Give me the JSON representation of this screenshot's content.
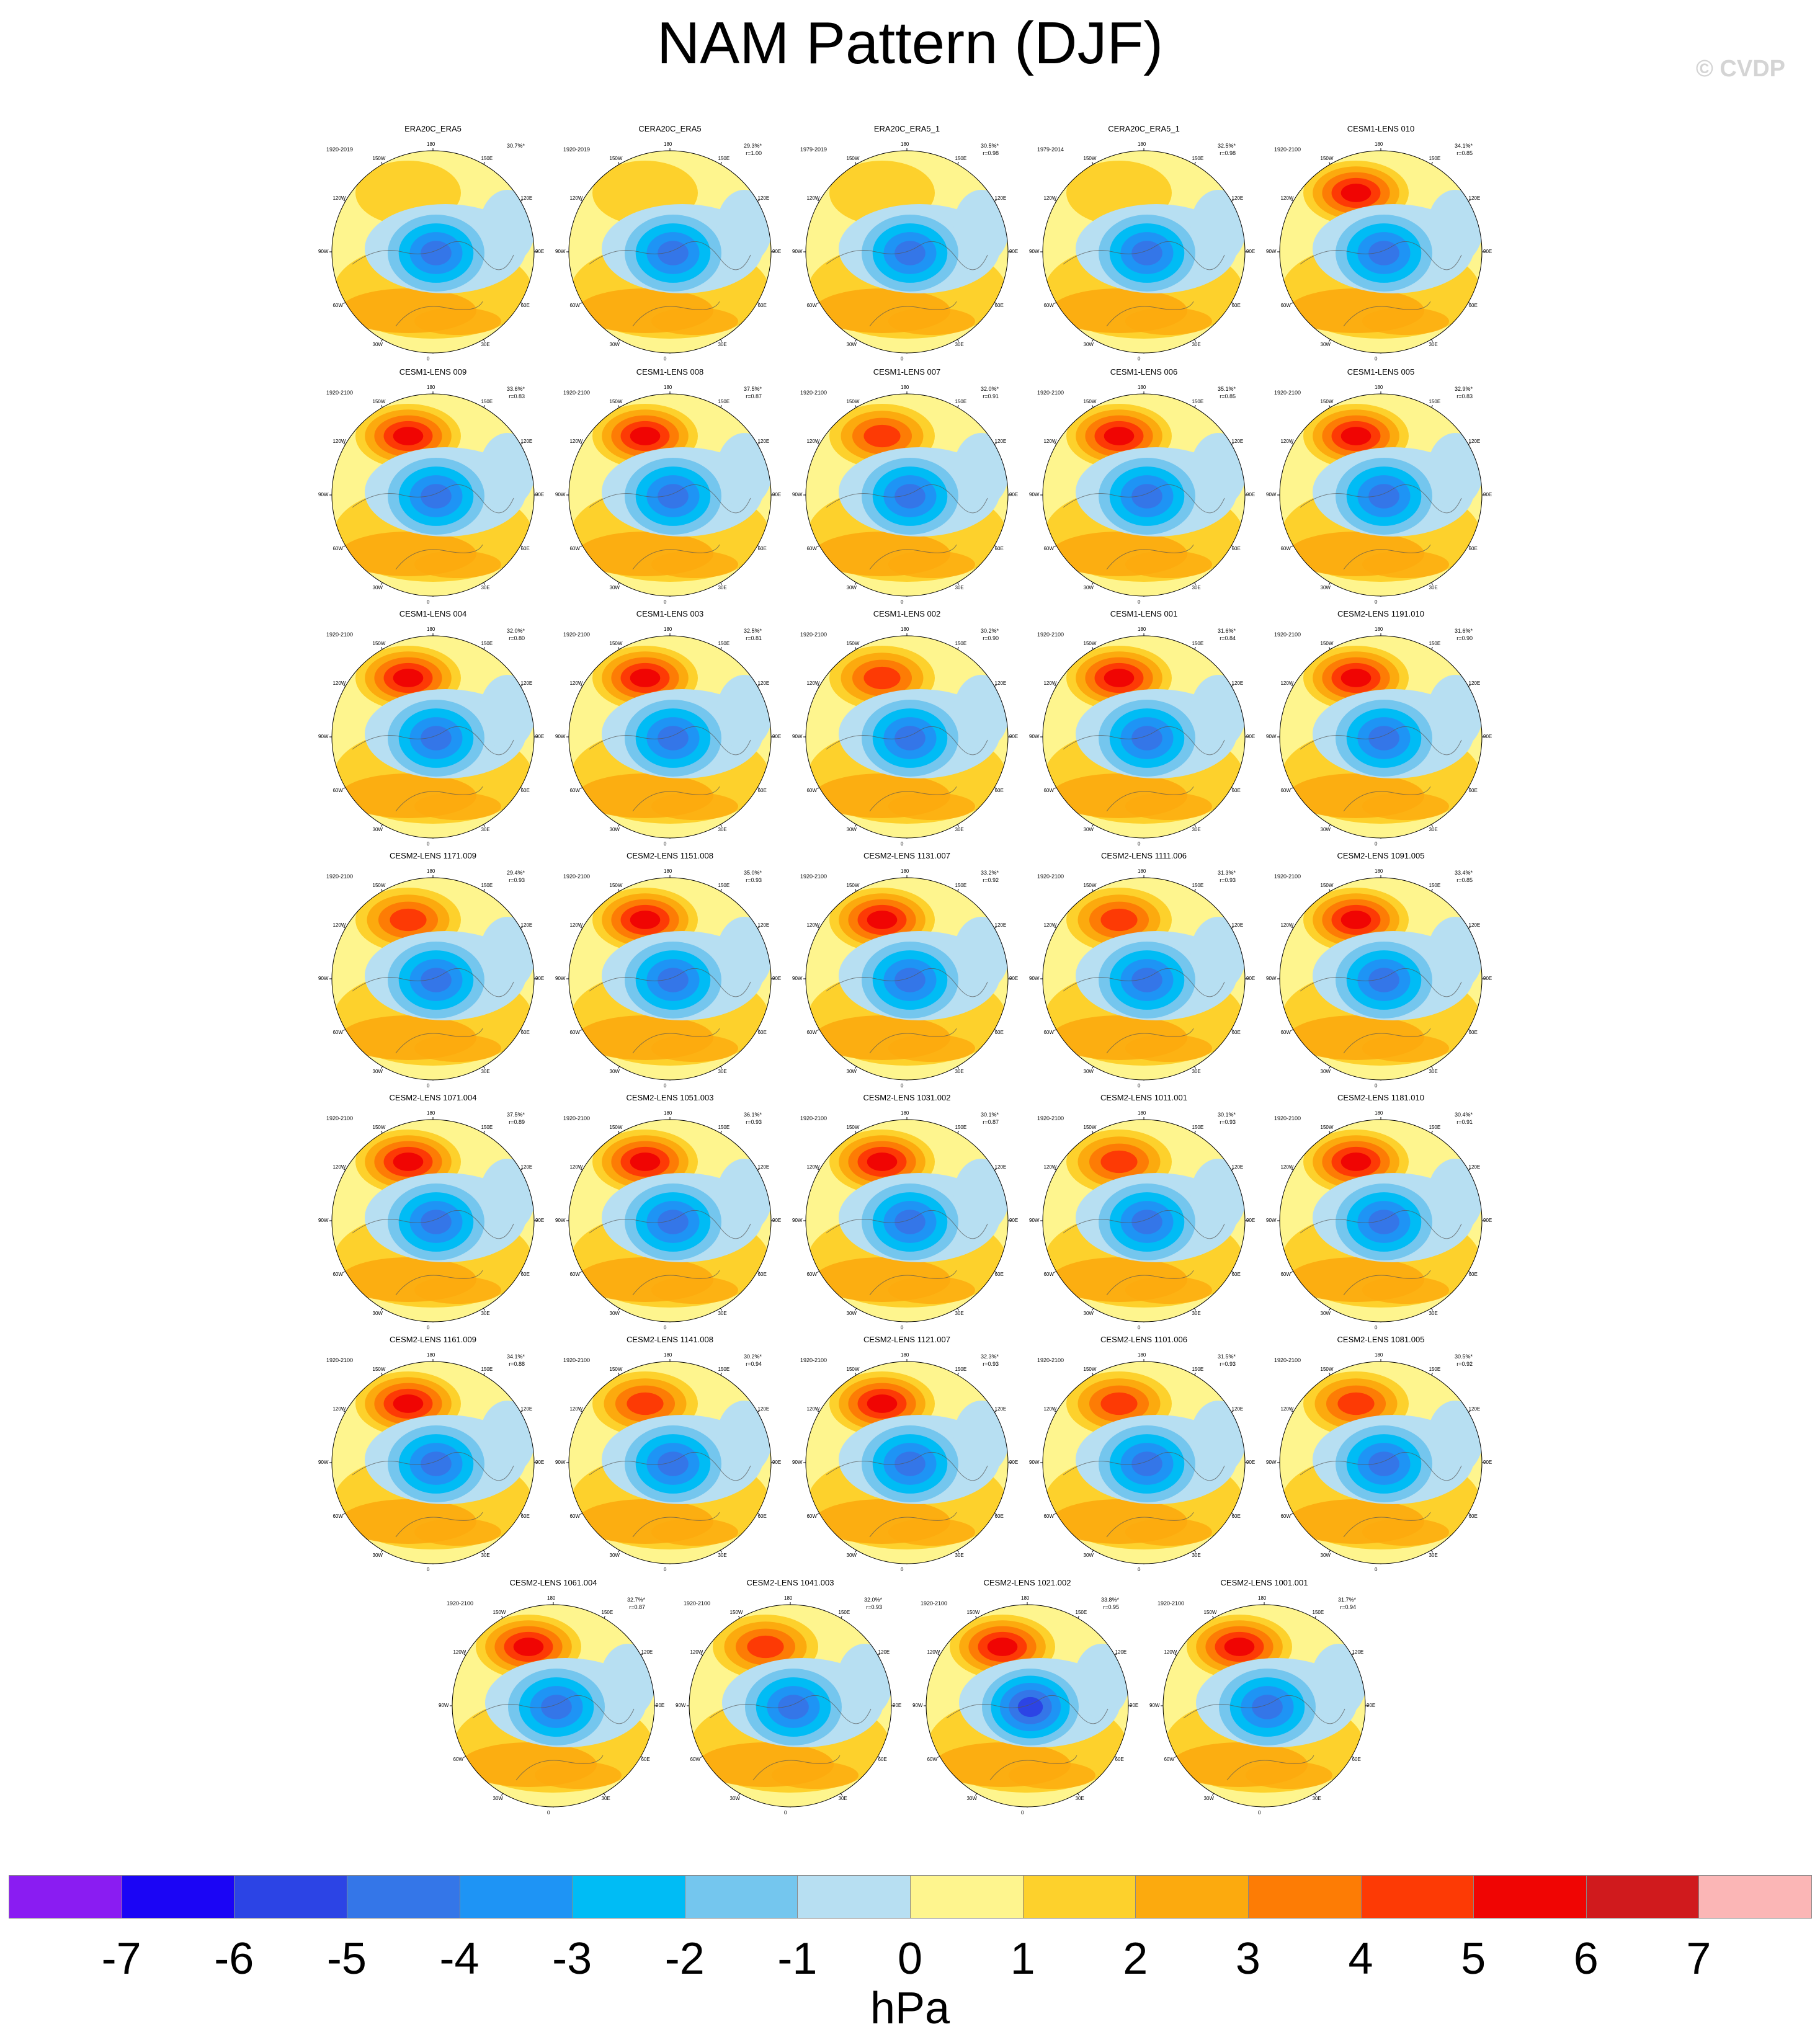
{
  "title": "NAM Pattern (DJF)",
  "copyright": "© CVDP",
  "units": "hPa",
  "longitude_labels": [
    "180",
    "150E",
    "120E",
    "90E",
    "60E",
    "30E",
    "0",
    "30W",
    "60W",
    "90W",
    "120W",
    "150W"
  ],
  "colorbar": {
    "ticks": [
      "-7",
      "-6",
      "-5",
      "-4",
      "-3",
      "-2",
      "-1",
      "0",
      "1",
      "2",
      "3",
      "4",
      "5",
      "6",
      "7"
    ],
    "colors": [
      "#8a1cf2",
      "#1b05f5",
      "#2c44e5",
      "#3476e8",
      "#1e94f5",
      "#00bcf5",
      "#74c6ee",
      "#b7dff2",
      "#fef58e",
      "#fdd12c",
      "#fcaa0e",
      "#fd7c05",
      "#fd3a05",
      "#f00503",
      "#d01a1d",
      "#fbb6b6"
    ]
  },
  "panels": [
    {
      "name": "ERA20C_ERA5",
      "period": "1920-2019",
      "variance": "30.7%*",
      "corr": "",
      "pos": 1.0,
      "neg": 4.2
    },
    {
      "name": "CERA20C_ERA5",
      "period": "1920-2019",
      "variance": "29.3%*",
      "corr": "r=1.00",
      "pos": 1.0,
      "neg": 4.3
    },
    {
      "name": "ERA20C_ERA5_1",
      "period": "1979-2019",
      "variance": "30.5%*",
      "corr": "r=0.98",
      "pos": 1.0,
      "neg": 4.3
    },
    {
      "name": "CERA20C_ERA5_1",
      "period": "1979-2014",
      "variance": "32.5%*",
      "corr": "r=0.98",
      "pos": 1.0,
      "neg": 4.4
    },
    {
      "name": "CESM1-LENS 010",
      "period": "1920-2100",
      "variance": "34.1%*",
      "corr": "r=0.85",
      "pos": 5.2,
      "neg": 4.2
    },
    {
      "name": "CESM1-LENS 009",
      "period": "1920-2100",
      "variance": "33.6%*",
      "corr": "r=0.83",
      "pos": 5.5,
      "neg": 4.3
    },
    {
      "name": "CESM1-LENS 008",
      "period": "1920-2100",
      "variance": "37.5%*",
      "corr": "r=0.87",
      "pos": 5.5,
      "neg": 4.4
    },
    {
      "name": "CESM1-LENS 007",
      "period": "1920-2100",
      "variance": "32.0%*",
      "corr": "r=0.91",
      "pos": 4.5,
      "neg": 4.3
    },
    {
      "name": "CESM1-LENS 006",
      "period": "1920-2100",
      "variance": "35.1%*",
      "corr": "r=0.85",
      "pos": 5.5,
      "neg": 4.4
    },
    {
      "name": "CESM1-LENS 005",
      "period": "1920-2100",
      "variance": "32.9%*",
      "corr": "r=0.83",
      "pos": 5.3,
      "neg": 4.3
    },
    {
      "name": "CESM1-LENS 004",
      "period": "1920-2100",
      "variance": "32.0%*",
      "corr": "r=0.80",
      "pos": 5.5,
      "neg": 4.1
    },
    {
      "name": "CESM1-LENS 003",
      "period": "1920-2100",
      "variance": "32.5%*",
      "corr": "r=0.81",
      "pos": 5.3,
      "neg": 4.1
    },
    {
      "name": "CESM1-LENS 002",
      "period": "1920-2100",
      "variance": "30.2%*",
      "corr": "r=0.90",
      "pos": 4.2,
      "neg": 4.2
    },
    {
      "name": "CESM1-LENS 001",
      "period": "1920-2100",
      "variance": "31.6%*",
      "corr": "r=0.84",
      "pos": 5.0,
      "neg": 4.3
    },
    {
      "name": "CESM2-LENS 1191.010",
      "period": "1920-2100",
      "variance": "31.6%*",
      "corr": "r=0.90",
      "pos": 5.0,
      "neg": 4.3
    },
    {
      "name": "CESM2-LENS 1171.009",
      "period": "1920-2100",
      "variance": "29.4%*",
      "corr": "r=0.93",
      "pos": 4.4,
      "neg": 4.3
    },
    {
      "name": "CESM2-LENS 1151.008",
      "period": "1920-2100",
      "variance": "35.0%*",
      "corr": "r=0.93",
      "pos": 5.0,
      "neg": 4.4
    },
    {
      "name": "CESM2-LENS 1131.007",
      "period": "1920-2100",
      "variance": "33.2%*",
      "corr": "r=0.92",
      "pos": 5.2,
      "neg": 4.4
    },
    {
      "name": "CESM2-LENS 1111.006",
      "period": "1920-2100",
      "variance": "31.3%*",
      "corr": "r=0.93",
      "pos": 4.6,
      "neg": 4.3
    },
    {
      "name": "CESM2-LENS 1091.005",
      "period": "1920-2100",
      "variance": "33.4%*",
      "corr": "r=0.85",
      "pos": 5.2,
      "neg": 4.3
    },
    {
      "name": "CESM2-LENS 1071.004",
      "period": "1920-2100",
      "variance": "37.5%*",
      "corr": "r=0.89",
      "pos": 5.6,
      "neg": 4.5
    },
    {
      "name": "CESM2-LENS 1051.003",
      "period": "1920-2100",
      "variance": "36.1%*",
      "corr": "r=0.93",
      "pos": 5.0,
      "neg": 4.5
    },
    {
      "name": "CESM2-LENS 1031.002",
      "period": "1920-2100",
      "variance": "30.1%*",
      "corr": "r=0.87",
      "pos": 5.3,
      "neg": 4.3
    },
    {
      "name": "CESM2-LENS 1011.001",
      "period": "1920-2100",
      "variance": "30.1%*",
      "corr": "r=0.93",
      "pos": 4.5,
      "neg": 4.4
    },
    {
      "name": "CESM2-LENS 1181.010",
      "period": "1920-2100",
      "variance": "30.4%*",
      "corr": "r=0.91",
      "pos": 5.0,
      "neg": 4.3
    },
    {
      "name": "CESM2-LENS 1161.009",
      "period": "1920-2100",
      "variance": "34.1%*",
      "corr": "r=0.88",
      "pos": 5.6,
      "neg": 4.4
    },
    {
      "name": "CESM2-LENS 1141.008",
      "period": "1920-2100",
      "variance": "30.2%*",
      "corr": "r=0.94",
      "pos": 4.4,
      "neg": 4.3
    },
    {
      "name": "CESM2-LENS 1121.007",
      "period": "1920-2100",
      "variance": "32.3%*",
      "corr": "r=0.93",
      "pos": 5.0,
      "neg": 4.3
    },
    {
      "name": "CESM2-LENS 1101.006",
      "period": "1920-2100",
      "variance": "31.5%*",
      "corr": "r=0.93",
      "pos": 4.4,
      "neg": 4.3
    },
    {
      "name": "CESM2-LENS 1081.005",
      "period": "1920-2100",
      "variance": "30.5%*",
      "corr": "r=0.92",
      "pos": 4.4,
      "neg": 4.3
    },
    {
      "name": "CESM2-LENS 1061.004",
      "period": "1920-2100",
      "variance": "32.7%*",
      "corr": "r=0.87",
      "pos": 5.3,
      "neg": 4.4
    },
    {
      "name": "CESM2-LENS 1041.003",
      "period": "1920-2100",
      "variance": "32.0%*",
      "corr": "r=0.93",
      "pos": 4.8,
      "neg": 4.4
    },
    {
      "name": "CESM2-LENS 1021.002",
      "period": "1920-2100",
      "variance": "33.8%*",
      "corr": "r=0.95",
      "pos": 5.0,
      "neg": 5.6
    },
    {
      "name": "CESM2-LENS 1001.001",
      "period": "1920-2100",
      "variance": "31.7%*",
      "corr": "r=0.94",
      "pos": 5.0,
      "neg": 4.3
    }
  ]
}
